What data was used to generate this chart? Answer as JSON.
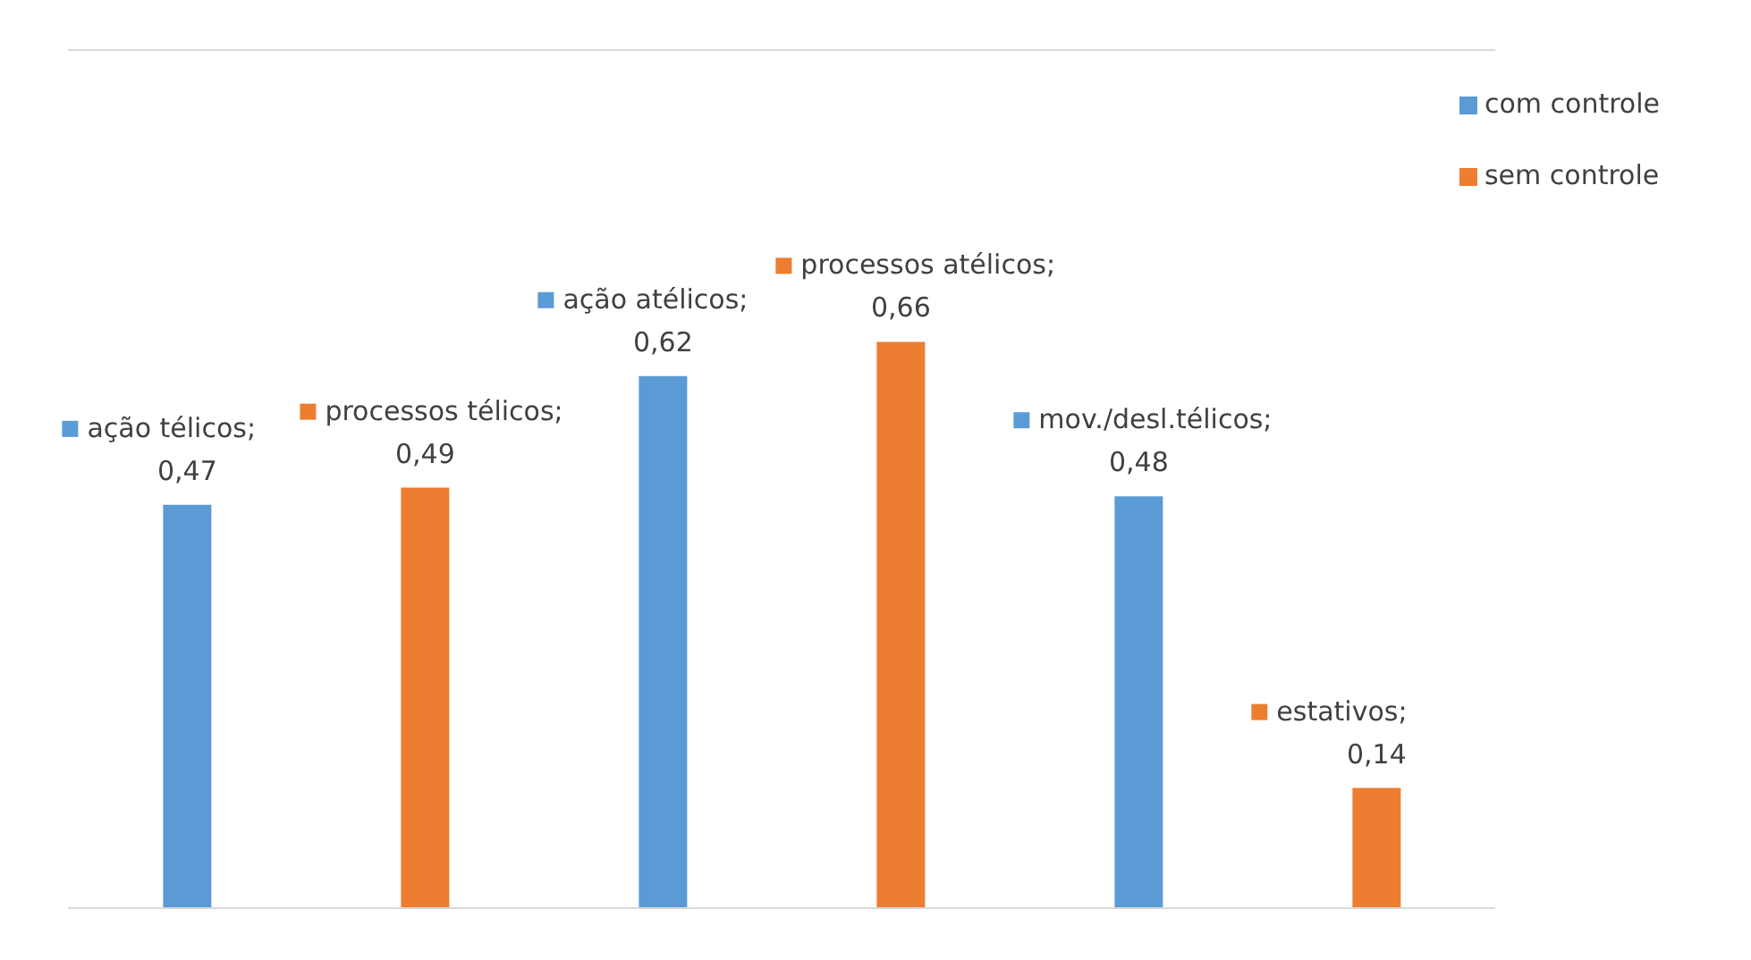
{
  "chart_data": {
    "type": "bar",
    "stacked": true,
    "categories": [
      null,
      null,
      null,
      null,
      null,
      null
    ],
    "series": [
      {
        "name": "com controle",
        "color": "#5b9bd5",
        "values": [
          0.47,
          null,
          0.62,
          null,
          0.48,
          null
        ],
        "value_labels": [
          "ação télicos; 0,47",
          null,
          "ação atélicos; 0,62",
          null,
          "mov./desl.télicos; 0,48",
          null
        ]
      },
      {
        "name": "sem controle",
        "color": "#ed7d31",
        "values": [
          null,
          0.49,
          null,
          0.66,
          null,
          0.14
        ],
        "value_labels": [
          null,
          "processos télicos; 0,49",
          null,
          "processos atélicos; 0,66",
          null,
          "estativos; 0,14"
        ]
      }
    ],
    "ylim": [
      0,
      1
    ],
    "grid": "y",
    "legend": "top right",
    "tick_labels": false
  }
}
